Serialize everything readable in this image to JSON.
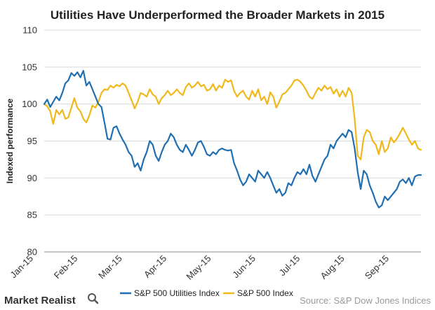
{
  "chart_data": {
    "type": "line",
    "title": "Utilities Have Underperformed the Broader Markets in 2015",
    "ylabel": "Indexed performance",
    "xlabel": "",
    "ylim": [
      80,
      110
    ],
    "yticks": [
      80,
      85,
      90,
      95,
      100,
      105,
      110
    ],
    "x_tick_labels": [
      "Jan-15",
      "Feb-15",
      "Mar-15",
      "Apr-15",
      "May-15",
      "Jun-15",
      "Jul-15",
      "Aug-15",
      "Sep-15"
    ],
    "grid": "horizontal",
    "legend_position": "bottom",
    "series": [
      {
        "name": "S&P 500 Utilities Index",
        "color": "#1f6fb2",
        "values": [
          [
            0,
            100.0
          ],
          [
            2,
            100.6
          ],
          [
            4,
            99.6
          ],
          [
            6,
            100.3
          ],
          [
            8,
            101.0
          ],
          [
            10,
            100.5
          ],
          [
            12,
            101.5
          ],
          [
            14,
            102.8
          ],
          [
            16,
            103.2
          ],
          [
            18,
            104.2
          ],
          [
            20,
            103.8
          ],
          [
            22,
            104.3
          ],
          [
            24,
            103.6
          ],
          [
            26,
            104.5
          ],
          [
            28,
            102.5
          ],
          [
            30,
            103.0
          ],
          [
            32,
            102.0
          ],
          [
            34,
            101.0
          ],
          [
            36,
            100.0
          ],
          [
            38,
            99.6
          ],
          [
            40,
            97.5
          ],
          [
            42,
            95.3
          ],
          [
            44,
            95.2
          ],
          [
            46,
            96.8
          ],
          [
            48,
            97.0
          ],
          [
            50,
            96.0
          ],
          [
            52,
            95.2
          ],
          [
            54,
            94.5
          ],
          [
            56,
            93.5
          ],
          [
            58,
            93.0
          ],
          [
            60,
            91.5
          ],
          [
            62,
            92.0
          ],
          [
            64,
            91.0
          ],
          [
            66,
            92.5
          ],
          [
            68,
            93.5
          ],
          [
            70,
            95.0
          ],
          [
            72,
            94.5
          ],
          [
            74,
            93.0
          ],
          [
            76,
            92.3
          ],
          [
            78,
            93.5
          ],
          [
            80,
            94.5
          ],
          [
            82,
            95.0
          ],
          [
            84,
            96.0
          ],
          [
            86,
            95.5
          ],
          [
            88,
            94.5
          ],
          [
            90,
            93.8
          ],
          [
            92,
            93.5
          ],
          [
            94,
            94.5
          ],
          [
            96,
            93.8
          ],
          [
            98,
            93.0
          ],
          [
            100,
            93.8
          ],
          [
            102,
            94.8
          ],
          [
            104,
            95.0
          ],
          [
            106,
            94.2
          ],
          [
            108,
            93.2
          ],
          [
            110,
            93.0
          ],
          [
            112,
            93.5
          ],
          [
            114,
            93.2
          ],
          [
            116,
            93.8
          ],
          [
            118,
            94.0
          ],
          [
            120,
            93.8
          ],
          [
            122,
            93.7
          ],
          [
            124,
            93.8
          ],
          [
            126,
            92.0
          ],
          [
            128,
            91.0
          ],
          [
            130,
            89.8
          ],
          [
            132,
            89.0
          ],
          [
            134,
            89.5
          ],
          [
            136,
            90.5
          ],
          [
            138,
            90.0
          ],
          [
            140,
            89.5
          ],
          [
            142,
            91.0
          ],
          [
            144,
            90.5
          ],
          [
            146,
            90.0
          ],
          [
            148,
            90.8
          ],
          [
            150,
            90.0
          ],
          [
            152,
            89.0
          ],
          [
            154,
            88.0
          ],
          [
            156,
            88.5
          ],
          [
            158,
            87.6
          ],
          [
            160,
            88.0
          ],
          [
            162,
            89.3
          ],
          [
            164,
            89.0
          ],
          [
            166,
            90.0
          ],
          [
            168,
            90.8
          ],
          [
            170,
            90.5
          ],
          [
            172,
            91.2
          ],
          [
            174,
            90.5
          ],
          [
            176,
            91.8
          ],
          [
            178,
            90.3
          ],
          [
            180,
            89.5
          ],
          [
            182,
            90.5
          ],
          [
            184,
            91.5
          ],
          [
            186,
            92.5
          ],
          [
            188,
            93.0
          ],
          [
            190,
            94.5
          ],
          [
            192,
            94.0
          ],
          [
            194,
            95.0
          ],
          [
            196,
            95.5
          ],
          [
            198,
            96.0
          ],
          [
            200,
            95.5
          ],
          [
            202,
            96.5
          ],
          [
            204,
            96.2
          ],
          [
            206,
            94.0
          ],
          [
            208,
            90.8
          ],
          [
            210,
            88.5
          ],
          [
            212,
            91.0
          ],
          [
            214,
            90.5
          ],
          [
            216,
            89.0
          ],
          [
            218,
            88.0
          ],
          [
            220,
            86.8
          ],
          [
            222,
            86.0
          ],
          [
            224,
            86.3
          ],
          [
            226,
            87.5
          ],
          [
            228,
            87.0
          ],
          [
            230,
            87.5
          ],
          [
            232,
            88.0
          ],
          [
            234,
            88.5
          ],
          [
            236,
            89.5
          ],
          [
            238,
            89.8
          ],
          [
            240,
            89.3
          ],
          [
            242,
            90.0
          ],
          [
            244,
            89.0
          ],
          [
            246,
            90.2
          ],
          [
            248,
            90.4
          ],
          [
            250,
            90.4
          ]
        ]
      },
      {
        "name": "S&P 500 Index",
        "color": "#f0b81a",
        "values": [
          [
            0,
            100.0
          ],
          [
            2,
            99.7
          ],
          [
            4,
            99.0
          ],
          [
            6,
            97.3
          ],
          [
            8,
            99.2
          ],
          [
            10,
            98.6
          ],
          [
            12,
            99.2
          ],
          [
            14,
            98.0
          ],
          [
            16,
            98.2
          ],
          [
            18,
            99.5
          ],
          [
            20,
            100.8
          ],
          [
            22,
            99.5
          ],
          [
            24,
            99.0
          ],
          [
            26,
            98.0
          ],
          [
            28,
            97.5
          ],
          [
            30,
            98.5
          ],
          [
            32,
            99.8
          ],
          [
            34,
            99.5
          ],
          [
            36,
            100.3
          ],
          [
            38,
            101.5
          ],
          [
            40,
            102.0
          ],
          [
            42,
            101.9
          ],
          [
            44,
            102.5
          ],
          [
            46,
            102.2
          ],
          [
            48,
            102.6
          ],
          [
            50,
            102.4
          ],
          [
            52,
            102.8
          ],
          [
            54,
            102.5
          ],
          [
            56,
            101.5
          ],
          [
            58,
            100.5
          ],
          [
            60,
            99.4
          ],
          [
            62,
            100.3
          ],
          [
            64,
            101.5
          ],
          [
            66,
            101.3
          ],
          [
            68,
            101.0
          ],
          [
            70,
            102.0
          ],
          [
            72,
            101.3
          ],
          [
            74,
            101.0
          ],
          [
            76,
            100.0
          ],
          [
            78,
            100.8
          ],
          [
            80,
            101.2
          ],
          [
            82,
            101.8
          ],
          [
            84,
            101.2
          ],
          [
            86,
            101.5
          ],
          [
            88,
            102.0
          ],
          [
            90,
            101.5
          ],
          [
            92,
            101.2
          ],
          [
            94,
            102.3
          ],
          [
            96,
            102.8
          ],
          [
            98,
            102.2
          ],
          [
            100,
            102.5
          ],
          [
            102,
            103.0
          ],
          [
            104,
            102.4
          ],
          [
            106,
            102.6
          ],
          [
            108,
            101.8
          ],
          [
            110,
            102.0
          ],
          [
            112,
            102.7
          ],
          [
            114,
            101.8
          ],
          [
            116,
            102.5
          ],
          [
            118,
            102.2
          ],
          [
            120,
            103.3
          ],
          [
            122,
            103.0
          ],
          [
            124,
            103.2
          ],
          [
            126,
            101.8
          ],
          [
            128,
            101.0
          ],
          [
            130,
            101.5
          ],
          [
            132,
            101.8
          ],
          [
            134,
            101.0
          ],
          [
            136,
            100.6
          ],
          [
            138,
            101.8
          ],
          [
            140,
            101.0
          ],
          [
            142,
            102.0
          ],
          [
            144,
            100.5
          ],
          [
            146,
            101.0
          ],
          [
            148,
            100.0
          ],
          [
            150,
            101.6
          ],
          [
            152,
            101.0
          ],
          [
            154,
            99.5
          ],
          [
            156,
            100.3
          ],
          [
            158,
            101.3
          ],
          [
            160,
            101.5
          ],
          [
            162,
            102.0
          ],
          [
            164,
            102.5
          ],
          [
            166,
            103.2
          ],
          [
            168,
            103.3
          ],
          [
            170,
            103.0
          ],
          [
            172,
            102.5
          ],
          [
            174,
            101.8
          ],
          [
            176,
            101.0
          ],
          [
            178,
            100.7
          ],
          [
            180,
            101.5
          ],
          [
            182,
            102.2
          ],
          [
            184,
            101.8
          ],
          [
            186,
            102.5
          ],
          [
            188,
            102.0
          ],
          [
            190,
            102.3
          ],
          [
            192,
            101.4
          ],
          [
            194,
            102.0
          ],
          [
            196,
            101.0
          ],
          [
            198,
            101.8
          ],
          [
            200,
            101.0
          ],
          [
            202,
            102.2
          ],
          [
            204,
            101.5
          ],
          [
            206,
            98.0
          ],
          [
            208,
            93.0
          ],
          [
            210,
            92.5
          ],
          [
            212,
            95.5
          ],
          [
            214,
            96.5
          ],
          [
            216,
            96.2
          ],
          [
            218,
            95.0
          ],
          [
            220,
            94.5
          ],
          [
            222,
            93.2
          ],
          [
            224,
            95.0
          ],
          [
            226,
            93.5
          ],
          [
            228,
            94.0
          ],
          [
            230,
            95.5
          ],
          [
            232,
            94.8
          ],
          [
            234,
            95.3
          ],
          [
            236,
            96.0
          ],
          [
            238,
            96.8
          ],
          [
            240,
            96.0
          ],
          [
            242,
            95.2
          ],
          [
            244,
            94.5
          ],
          [
            246,
            95.0
          ],
          [
            248,
            94.0
          ],
          [
            250,
            93.8
          ]
        ]
      }
    ]
  },
  "branding": {
    "brand": "Market Realist",
    "source": "Source: S&P Dow Jones Indices"
  }
}
